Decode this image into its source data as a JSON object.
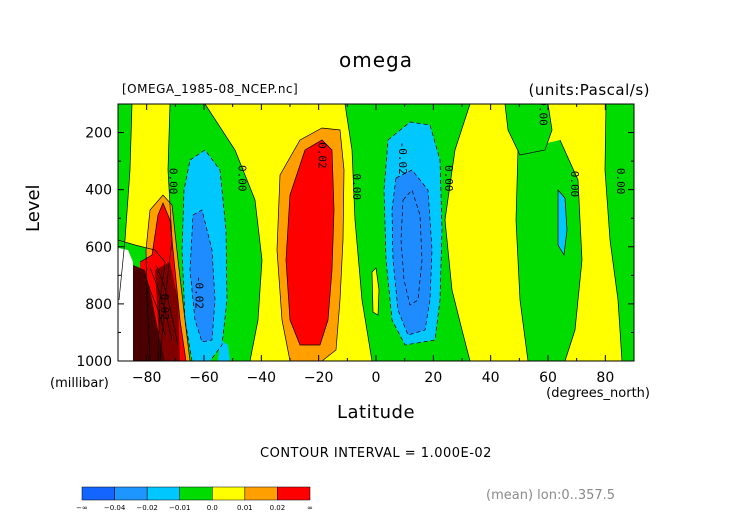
{
  "chart_data": {
    "type": "heatmap",
    "title": "omega",
    "file_label": "[OMEGA_1985-08_NCEP.nc]",
    "units_label": "(units:Pascal/s)",
    "xlabel": "Latitude",
    "x_units": "(degrees_north)",
    "ylabel": "Level",
    "y_units": "(millibar)",
    "x_range": [
      -90,
      90
    ],
    "y_range": [
      1000,
      100
    ],
    "x_ticks": [
      -80,
      -60,
      -40,
      -20,
      0,
      20,
      40,
      60,
      80
    ],
    "y_ticks": [
      200,
      400,
      600,
      800,
      1000
    ],
    "contour_interval_text": "CONTOUR INTERVAL = 1.000E-02",
    "footnote": "(mean) lon:0..357.5",
    "contour_labels": [
      {
        "text": "0.00",
        "lat": -72,
        "lev": 370
      },
      {
        "text": "0.00",
        "lat": -48,
        "lev": 360
      },
      {
        "text": "0.02",
        "lat": -20,
        "lev": 280
      },
      {
        "text": "0.00",
        "lat": -8,
        "lev": 390
      },
      {
        "text": "-0.02",
        "lat": 8,
        "lev": 290
      },
      {
        "text": "0.00",
        "lat": 24,
        "lev": 360
      },
      {
        "text": "0.00",
        "lat": 57,
        "lev": 130
      },
      {
        "text": "0.00",
        "lat": 68,
        "lev": 380
      },
      {
        "text": "0.00",
        "lat": 84,
        "lev": 370
      },
      {
        "text": "-0.02",
        "lat": -63,
        "lev": 760
      },
      {
        "text": "0.02",
        "lat": -75,
        "lev": 810
      }
    ],
    "legend": {
      "colors": [
        "#1464ff",
        "#1e96ff",
        "#00c8ff",
        "#00dc00",
        "#ffff00",
        "#ffa000",
        "#ff0000"
      ],
      "labels": [
        "-∞",
        "-0.04",
        "-0.02",
        "-0.01",
        "0.0",
        "0.01",
        "0.02",
        "∞"
      ]
    },
    "colors": {
      "strong_neg": "#1464ff",
      "neg": "#00c8ff",
      "near_zero_neg": "#00dc00",
      "near_zero_pos": "#ffff00",
      "pos": "#ffa000",
      "strong_pos": "#ff0000",
      "extreme_pos": "#5a0000",
      "missing": "#ffffff"
    }
  }
}
